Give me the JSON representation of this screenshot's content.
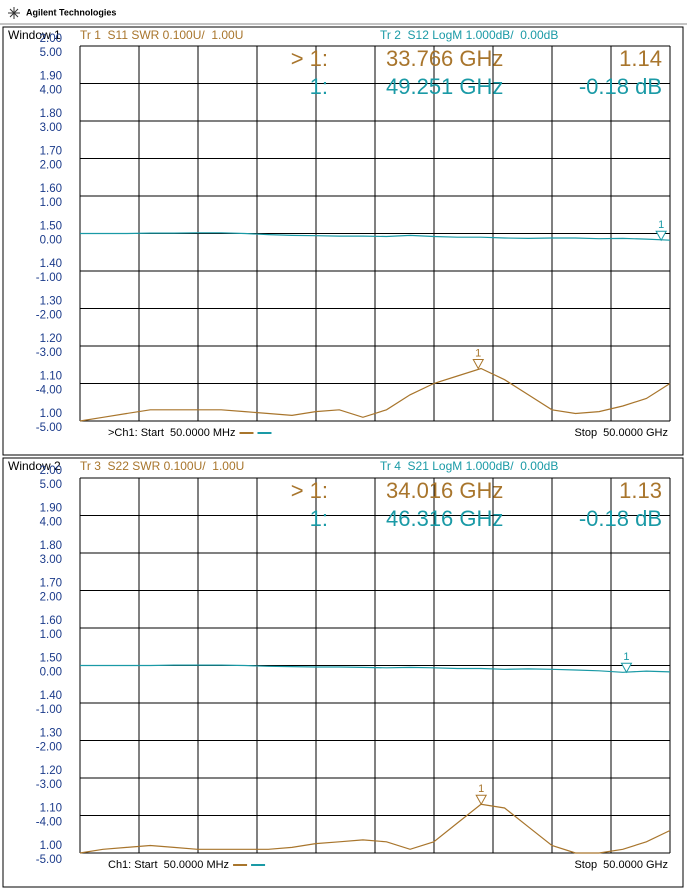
{
  "header": {
    "brand": "Agilent Technologies"
  },
  "chart_data": [
    {
      "type": "line",
      "window": "Window 1",
      "x": [
        0.05,
        2,
        4,
        6,
        8,
        10,
        12,
        14,
        16,
        18,
        20,
        22,
        24,
        26,
        28,
        30,
        32,
        34,
        36,
        38,
        40,
        42,
        44,
        46,
        48,
        50
      ],
      "xlim": [
        0.05,
        50
      ],
      "ylim": [
        1,
        2
      ],
      "yticks": [
        {
          "value": 1,
          "label": "1.00"
        },
        {
          "value": 1.1,
          "label": "1.10"
        },
        {
          "value": 1.2,
          "label": "1.20"
        },
        {
          "value": 1.3,
          "label": "1.30"
        },
        {
          "value": 1.4,
          "label": "1.40"
        },
        {
          "value": 1.5,
          "label": "1.50"
        },
        {
          "value": 1.6,
          "label": "1.60"
        },
        {
          "value": 1.7,
          "label": "1.70"
        },
        {
          "value": 1.8,
          "label": "1.80"
        },
        {
          "value": 1.9,
          "label": "1.90"
        },
        {
          "value": 2,
          "label": "2.00"
        }
      ],
      "y2lim": [
        -5,
        5
      ],
      "y2ticks": [
        {
          "value": -5,
          "label": "-5.00"
        },
        {
          "value": -4,
          "label": "-4.00"
        },
        {
          "value": -3,
          "label": "-3.00"
        },
        {
          "value": -2,
          "label": "-2.00"
        },
        {
          "value": -1,
          "label": "-1.00"
        },
        {
          "value": 0,
          "label": "0.00"
        },
        {
          "value": 1,
          "label": "1.00"
        },
        {
          "value": 2,
          "label": "2.00"
        },
        {
          "value": 3,
          "label": "3.00"
        },
        {
          "value": 4,
          "label": "4.00"
        },
        {
          "value": 5,
          "label": "5.00"
        }
      ],
      "grid": true,
      "series": [
        {
          "header": "Tr 1  S11 SWR 0.100U/  1.00U",
          "color": "#a8752c",
          "values": [
            1.0,
            1.01,
            1.02,
            1.03,
            1.03,
            1.03,
            1.03,
            1.025,
            1.02,
            1.015,
            1.025,
            1.03,
            1.01,
            1.03,
            1.07,
            1.1,
            1.12,
            1.14,
            1.11,
            1.07,
            1.03,
            1.02,
            1.025,
            1.04,
            1.06,
            1.1
          ],
          "marker": {
            "tag": "1",
            "readout": "> 1:",
            "x": 33.766,
            "x_label": "33.766 GHz",
            "value": 1.14,
            "value_label": "1.14"
          }
        },
        {
          "header": "Tr 2  S12 LogM 1.000dB/  0.00dB",
          "color": "#1a9aa6",
          "axis": "y2",
          "values": [
            0.0,
            0.0,
            0.0,
            0.01,
            0.01,
            0.02,
            0.02,
            0.0,
            -0.03,
            -0.05,
            -0.06,
            -0.07,
            -0.07,
            -0.08,
            -0.05,
            -0.08,
            -0.1,
            -0.1,
            -0.12,
            -0.13,
            -0.12,
            -0.12,
            -0.14,
            -0.13,
            -0.15,
            -0.18
          ],
          "marker": {
            "tag": "1",
            "readout": "1:",
            "x": 49.251,
            "x_label": "49.251 GHz",
            "value": -0.18,
            "value_label": "-0.18 dB"
          }
        }
      ],
      "start_label": ">Ch1: Start  50.0000 MHz",
      "stop_label": "Stop  50.0000 GHz"
    },
    {
      "type": "line",
      "window": "Window 2",
      "x": [
        0.05,
        2,
        4,
        6,
        8,
        10,
        12,
        14,
        16,
        18,
        20,
        22,
        24,
        26,
        28,
        30,
        32,
        34,
        36,
        38,
        40,
        42,
        44,
        46,
        48,
        50
      ],
      "xlim": [
        0.05,
        50
      ],
      "ylim": [
        1,
        2
      ],
      "yticks": [
        {
          "value": 1,
          "label": "1.00"
        },
        {
          "value": 1.1,
          "label": "1.10"
        },
        {
          "value": 1.2,
          "label": "1.20"
        },
        {
          "value": 1.3,
          "label": "1.30"
        },
        {
          "value": 1.4,
          "label": "1.40"
        },
        {
          "value": 1.5,
          "label": "1.50"
        },
        {
          "value": 1.6,
          "label": "1.60"
        },
        {
          "value": 1.7,
          "label": "1.70"
        },
        {
          "value": 1.8,
          "label": "1.80"
        },
        {
          "value": 1.9,
          "label": "1.90"
        },
        {
          "value": 2,
          "label": "2.00"
        }
      ],
      "y2lim": [
        -5,
        5
      ],
      "y2ticks": [
        {
          "value": -5,
          "label": "-5.00"
        },
        {
          "value": -4,
          "label": "-4.00"
        },
        {
          "value": -3,
          "label": "-3.00"
        },
        {
          "value": -2,
          "label": "-2.00"
        },
        {
          "value": -1,
          "label": "-1.00"
        },
        {
          "value": 0,
          "label": "0.00"
        },
        {
          "value": 1,
          "label": "1.00"
        },
        {
          "value": 2,
          "label": "2.00"
        },
        {
          "value": 3,
          "label": "3.00"
        },
        {
          "value": 4,
          "label": "4.00"
        },
        {
          "value": 5,
          "label": "5.00"
        }
      ],
      "grid": true,
      "series": [
        {
          "header": "Tr 3  S22 SWR 0.100U/  1.00U",
          "color": "#a8752c",
          "values": [
            1.0,
            1.01,
            1.015,
            1.02,
            1.015,
            1.01,
            1.01,
            1.01,
            1.01,
            1.015,
            1.025,
            1.03,
            1.035,
            1.03,
            1.01,
            1.03,
            1.08,
            1.13,
            1.12,
            1.07,
            1.02,
            1.0,
            1.0,
            1.01,
            1.03,
            1.06
          ],
          "marker": {
            "tag": "1",
            "readout": "> 1:",
            "x": 34.016,
            "x_label": "34.016 GHz",
            "value": 1.13,
            "value_label": "1.13"
          }
        },
        {
          "header": "Tr 4  S21 LogM 1.000dB/  0.00dB",
          "color": "#1a9aa6",
          "axis": "y2",
          "values": [
            0.0,
            0.0,
            0.0,
            0.0,
            0.01,
            0.01,
            0.01,
            0.0,
            -0.02,
            -0.03,
            -0.04,
            -0.04,
            -0.05,
            -0.06,
            -0.05,
            -0.06,
            -0.08,
            -0.08,
            -0.1,
            -0.09,
            -0.1,
            -0.12,
            -0.14,
            -0.18,
            -0.15,
            -0.17
          ],
          "marker": {
            "tag": "1",
            "readout": "1:",
            "x": 46.316,
            "x_label": "46.316 GHz",
            "value": -0.18,
            "value_label": "-0.18 dB"
          }
        }
      ],
      "start_label": "Ch1: Start  50.0000 MHz",
      "stop_label": "Stop  50.0000 GHz"
    }
  ]
}
